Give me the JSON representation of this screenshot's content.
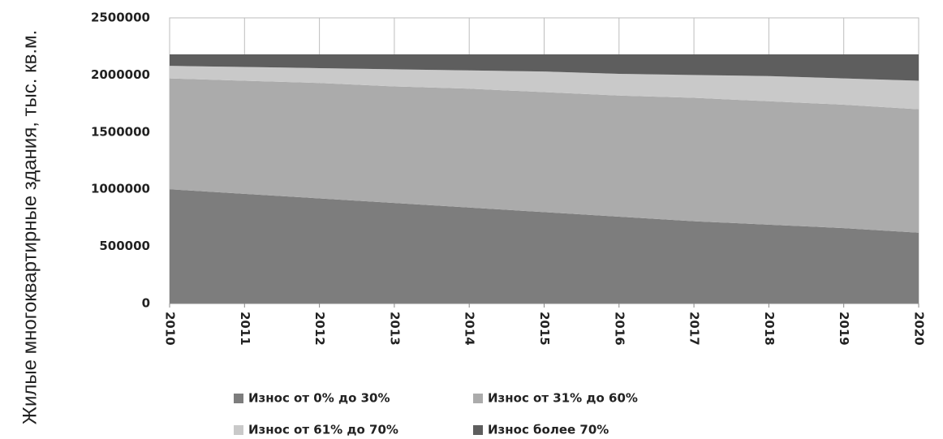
{
  "chart_data": {
    "type": "stacked_area",
    "y_label": "Жилые многоквартирные здания, тыс. кв.м.",
    "x": [
      2010,
      2011,
      2012,
      2013,
      2014,
      2015,
      2016,
      2017,
      2018,
      2019,
      2020
    ],
    "xlim": [
      2010,
      2020
    ],
    "xticks": [
      2010,
      2011,
      2012,
      2013,
      2014,
      2015,
      2016,
      2017,
      2018,
      2019,
      2020
    ],
    "ylim": [
      0,
      2500000
    ],
    "yticks": [
      0,
      500000,
      1000000,
      1500000,
      2000000,
      2500000
    ],
    "grid": true,
    "legend": "bottom",
    "series": [
      {
        "name": "Износ от 0% до 30%",
        "color": "#7d7d7d",
        "values": [
          1000000,
          960000,
          920000,
          880000,
          840000,
          800000,
          760000,
          720000,
          690000,
          660000,
          620000
        ]
      },
      {
        "name": "Износ от 31% до 60%",
        "color": "#ababab",
        "values": [
          970000,
          990000,
          1010000,
          1020000,
          1040000,
          1050000,
          1060000,
          1080000,
          1080000,
          1080000,
          1080000
        ]
      },
      {
        "name": "Износ от 61% до 70%",
        "color": "#c9c9c9",
        "values": [
          110000,
          120000,
          130000,
          150000,
          160000,
          180000,
          190000,
          200000,
          220000,
          230000,
          250000
        ]
      },
      {
        "name": "Износ более 70%",
        "color": "#5e5e5e",
        "values": [
          100000,
          110000,
          120000,
          130000,
          140000,
          150000,
          170000,
          180000,
          190000,
          210000,
          230000
        ]
      }
    ]
  }
}
